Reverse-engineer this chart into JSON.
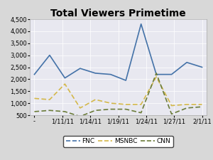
{
  "title": "Total Viewers Primetime",
  "FNC_color": "#4472a8",
  "MSNBC_color": "#d4b84a",
  "CNN_color": "#6b7c3a",
  "FNC_y": [
    2200,
    3000,
    2050,
    2450,
    2250,
    2200,
    1950,
    4300,
    2200,
    2200,
    2700,
    2500
  ],
  "MSNBC_y": [
    1200,
    1150,
    1800,
    800,
    1150,
    1000,
    950,
    950,
    2100,
    900,
    950,
    950
  ],
  "CNN_y": [
    650,
    700,
    650,
    450,
    700,
    750,
    750,
    600,
    2250,
    550,
    800,
    850
  ],
  "ylim": [
    500,
    4500
  ],
  "yticks": [
    500,
    1000,
    1500,
    2000,
    2500,
    3000,
    3500,
    4000,
    4500
  ],
  "xtick_labels": [
    "-",
    "1/11/11",
    "1/14/11",
    "1/19/11",
    "1/24/11",
    "1/27/11",
    "2/1/11"
  ],
  "fig_bg": "#d8d8d8",
  "plot_bg": "#e8e8f0",
  "title_fontsize": 10,
  "tick_fontsize": 6,
  "legend_fontsize": 6.5
}
